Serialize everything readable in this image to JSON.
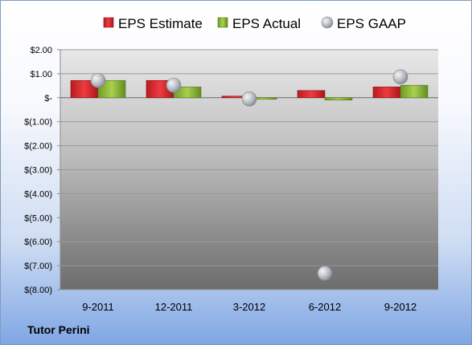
{
  "company": "Tutor Perini",
  "colors": {
    "estimate": "#d9262c",
    "actual": "#8cba3a",
    "gaap": "#b8bcc2"
  },
  "chart_data": {
    "type": "bar",
    "categories": [
      "9-2011",
      "12-2011",
      "3-2012",
      "6-2012",
      "9-2012"
    ],
    "series": [
      {
        "name": "EPS Estimate",
        "kind": "bar",
        "values": [
          0.72,
          0.72,
          0.0,
          0.3,
          0.45
        ]
      },
      {
        "name": "EPS Actual",
        "kind": "bar",
        "values": [
          0.72,
          0.45,
          -0.05,
          -0.1,
          0.52
        ]
      },
      {
        "name": "EPS GAAP",
        "kind": "scatter",
        "values": [
          0.72,
          0.52,
          -0.05,
          -7.32,
          0.87
        ]
      }
    ],
    "yticks": [
      "$2.00",
      "$1.00",
      "$-",
      "$(1.00)",
      "$(2.00)",
      "$(3.00)",
      "$(4.00)",
      "$(5.00)",
      "$(6.00)",
      "$(7.00)",
      "$(8.00)"
    ],
    "ylim": [
      -8,
      2
    ],
    "grid": true,
    "legend_position": "top"
  }
}
